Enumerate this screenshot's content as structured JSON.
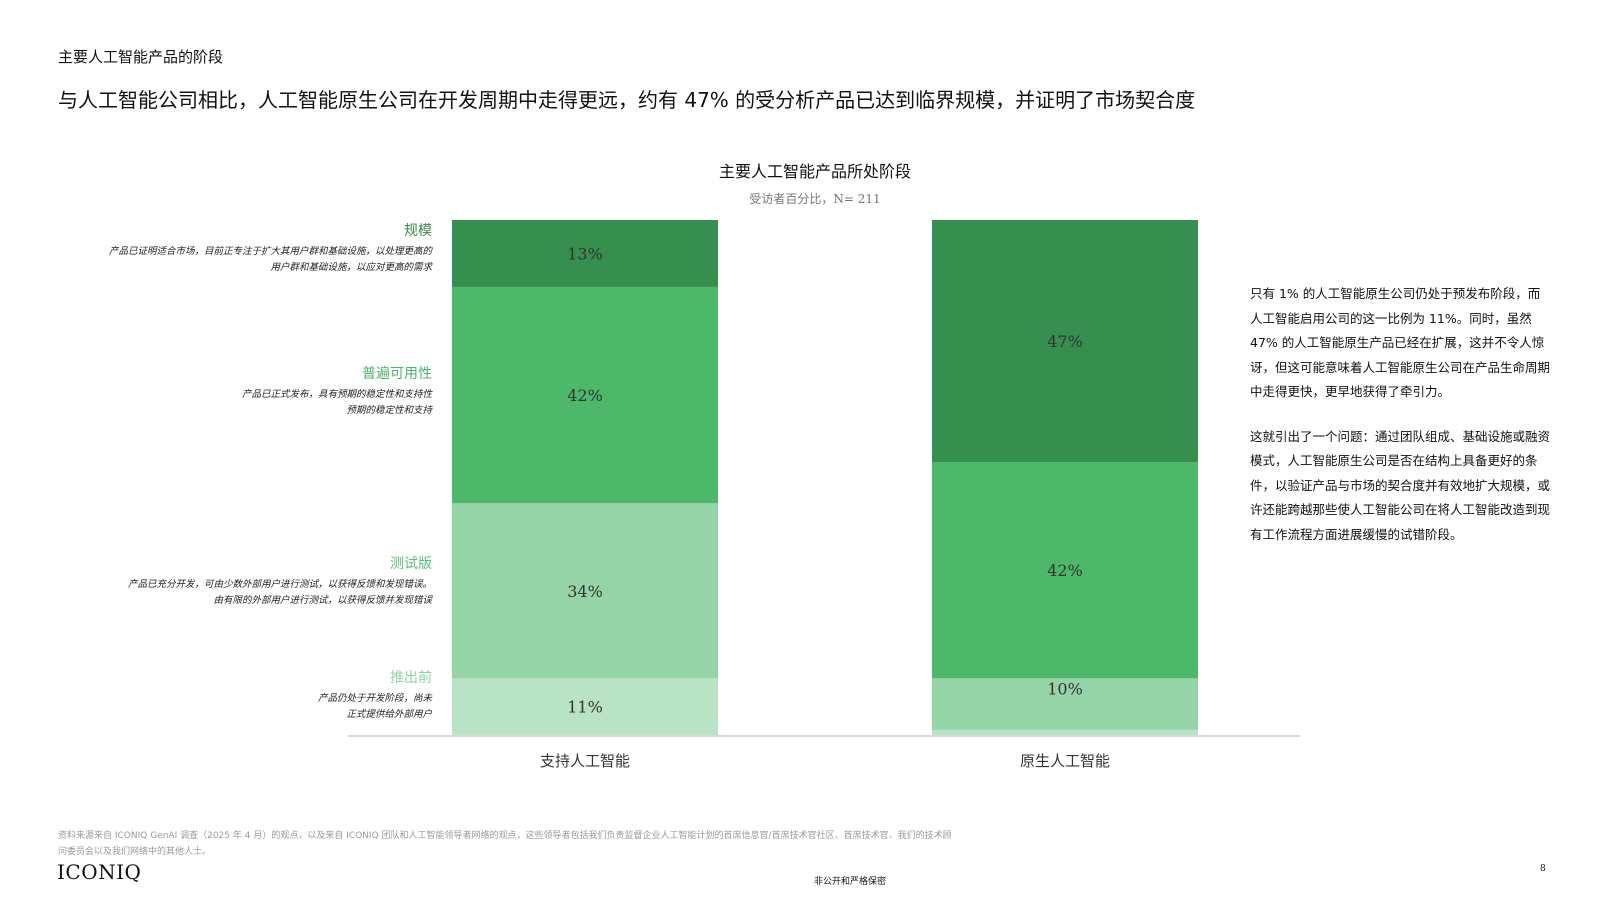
{
  "section_label": "主要人工智能产品的阶段",
  "headline": "与人工智能公司相比，人工智能原生公司在开发周期中走得更远，约有 47% 的受分析产品已达到临界规模，并证明了市场契合度",
  "stages": [
    {
      "name": "规模",
      "color": "#3a8c4d",
      "desc_lines": [
        "产品已证明适合市场，目前正专注于扩大其用户群和基础设施，以处理更高的",
        "用户群和基础设施，以应对更高的需求"
      ]
    },
    {
      "name": "普遍可用性",
      "color": "#4cb36a",
      "desc_lines": [
        "产品已正式发布，具有预期的稳定性和支持性",
        "预期的稳定性和支持"
      ]
    },
    {
      "name": "测试版",
      "color": "#5cc07a",
      "desc_lines": [
        "产品已充分开发，可由少数外部用户进行测试，以获得反馈和发现错误。",
        "由有限的外部用户进行测试，以获得反馈并发现错误"
      ]
    },
    {
      "name": "推出前",
      "color": "#8fd4a0",
      "desc_lines": [
        "产品仍处于开发阶段，尚未",
        "正式提供给外部用户"
      ]
    }
  ],
  "chart_data": {
    "type": "bar",
    "stacked": true,
    "title": "主要人工智能产品所处阶段",
    "subtitle": "受访者百分比，N= 211",
    "categories": [
      "支持人工智能",
      "原生人工智能"
    ],
    "ylim": [
      0,
      100
    ],
    "series": [
      {
        "name": "推出前",
        "color": "#b8e3c4",
        "values": [
          11,
          1
        ],
        "labels": [
          "11%",
          "1%"
        ]
      },
      {
        "name": "测试版",
        "color": "#94d4a6",
        "values": [
          34,
          10
        ],
        "labels": [
          "34%",
          "10%"
        ]
      },
      {
        "name": "普遍可用性",
        "color": "#4db76a",
        "values": [
          42,
          42
        ],
        "labels": [
          "42%",
          "42%"
        ]
      },
      {
        "name": "规模",
        "color": "#368e4f",
        "values": [
          13,
          47
        ],
        "labels": [
          "13%",
          "47%"
        ]
      }
    ]
  },
  "commentary": [
    "只有 1% 的人工智能原生公司仍处于预发布阶段，而人工智能启用公司的这一比例为 11%。同时，虽然 47% 的人工智能原生产品已经在扩展，这并不令人惊讶，但这可能意味着人工智能原生公司在产品生命周期中走得更快，更早地获得了牵引力。",
    "这就引出了一个问题：通过团队组成、基础设施或融资模式，人工智能原生公司是否在结构上具备更好的条件，以验证产品与市场的契合度并有效地扩大规模，或许还能跨越那些使人工智能公司在将人工智能改造到现有工作流程方面进展缓慢的试错阶段。"
  ],
  "footnote": "资料来源来自 ICONIQ GenAI 调查（2025 年 4 月）的观点，以及来自 ICONIQ 团队和人工智能领导者网络的观点，这些领导者包括我们负责监督企业人工智能计划的首席信息官/首席技术官社区、首席技术官、我们的技术顾问委员会以及我们网络中的其他人士。",
  "logo": "ICONIQ",
  "confidential": "非公开和严格保密",
  "page_number": "8"
}
